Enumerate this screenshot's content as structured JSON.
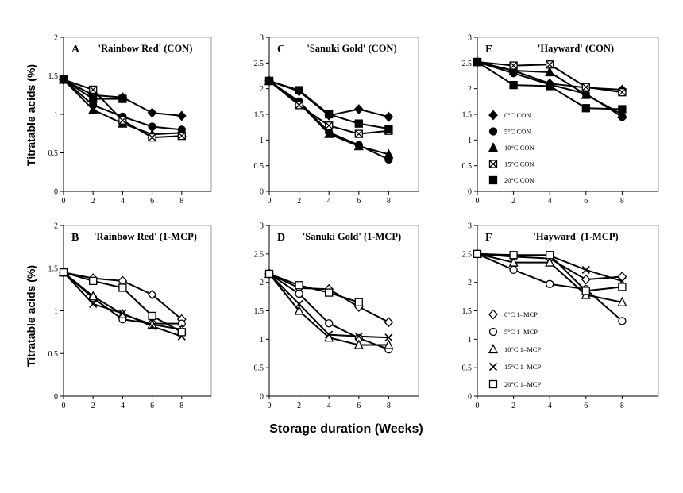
{
  "figure": {
    "ylabel_top": "Titratable  acids (%)",
    "ylabel_bottom": "Titratable  acids (%)",
    "xlabel": "Storage duration (Weeks)"
  },
  "chart_data": [
    {
      "type": "line",
      "panel": "A",
      "title": "'Rainbow Red' (CON)",
      "x": [
        0,
        2,
        4,
        6,
        8
      ],
      "xlim": [
        0,
        10
      ],
      "xticks": [
        0,
        2,
        4,
        6,
        8
      ],
      "ylim": [
        0,
        2
      ],
      "yticks": [
        "0",
        "0.5",
        "1",
        "1.5",
        "2"
      ],
      "series": [
        {
          "name": "0°C  CON",
          "marker": "diamond-filled",
          "values": [
            1.45,
            1.25,
            1.22,
            1.02,
            0.98
          ]
        },
        {
          "name": "5°C  CON",
          "marker": "circle-filled",
          "values": [
            1.45,
            1.12,
            0.97,
            0.84,
            0.8
          ]
        },
        {
          "name": "10°C  CON",
          "marker": "triangle-filled",
          "values": [
            1.45,
            1.06,
            0.88,
            0.74,
            0.76
          ]
        },
        {
          "name": "15°C  CON",
          "marker": "square-x",
          "values": [
            1.45,
            1.32,
            0.92,
            0.7,
            0.72
          ]
        },
        {
          "name": "20°C  CON",
          "marker": "square-filled",
          "values": [
            1.45,
            1.2,
            1.2,
            null,
            null
          ]
        }
      ]
    },
    {
      "type": "line",
      "panel": "C",
      "title": "'Sanuki Gold' (CON)",
      "x": [
        0,
        2,
        4,
        6,
        8
      ],
      "xlim": [
        0,
        10
      ],
      "xticks": [
        0,
        2,
        4,
        6,
        8
      ],
      "ylim": [
        0,
        3
      ],
      "yticks": [
        "0",
        "0.5",
        "1",
        "1.5",
        "2",
        "2.5",
        "3"
      ],
      "series": [
        {
          "name": "0°C  CON",
          "marker": "diamond-filled",
          "values": [
            2.15,
            1.95,
            1.48,
            1.6,
            1.45
          ]
        },
        {
          "name": "5°C  CON",
          "marker": "circle-filled",
          "values": [
            2.15,
            1.75,
            1.15,
            0.9,
            0.62
          ]
        },
        {
          "name": "10°C  CON",
          "marker": "triangle-filled",
          "values": [
            2.15,
            1.72,
            1.12,
            0.88,
            0.72
          ]
        },
        {
          "name": "15°C  CON",
          "marker": "square-x",
          "values": [
            2.15,
            1.68,
            1.28,
            1.12,
            1.18
          ]
        },
        {
          "name": "20°C  CON",
          "marker": "square-filled",
          "values": [
            2.15,
            1.97,
            1.5,
            1.32,
            1.22
          ]
        }
      ]
    },
    {
      "type": "line",
      "panel": "E",
      "title": "'Hayward' (CON)",
      "x": [
        0,
        2,
        4,
        6,
        8
      ],
      "xlim": [
        0,
        10
      ],
      "xticks": [
        0,
        2,
        4,
        6,
        8
      ],
      "ylim": [
        0,
        3
      ],
      "yticks": [
        "0",
        "0.5",
        "1",
        "1.5",
        "2",
        "2.5",
        "3"
      ],
      "legend": "inside-left",
      "series": [
        {
          "name": "0°C  CON",
          "marker": "diamond-filled",
          "values": [
            2.52,
            2.35,
            2.1,
            2.02,
            1.98
          ]
        },
        {
          "name": "5°C  CON",
          "marker": "circle-filled",
          "values": [
            2.52,
            2.3,
            2.08,
            1.9,
            1.45
          ]
        },
        {
          "name": "10°C  CON",
          "marker": "triangle-filled",
          "values": [
            2.52,
            2.35,
            2.32,
            1.88,
            1.5
          ]
        },
        {
          "name": "15°C  CON",
          "marker": "square-x",
          "values": [
            2.52,
            2.45,
            2.47,
            2.03,
            1.93
          ]
        },
        {
          "name": "20°C  CON",
          "marker": "square-filled",
          "values": [
            2.52,
            2.07,
            2.05,
            1.62,
            1.6
          ]
        }
      ]
    },
    {
      "type": "line",
      "panel": "B",
      "title": "'Rainbow Red' (1-MCP)",
      "x": [
        0,
        2,
        4,
        6,
        8
      ],
      "xlim": [
        0,
        10
      ],
      "xticks": [
        0,
        2,
        4,
        6,
        8
      ],
      "ylim": [
        0,
        2
      ],
      "yticks": [
        "0",
        "0.5",
        "1",
        "1.5",
        "2"
      ],
      "series": [
        {
          "name": "0°C  1–MCP",
          "marker": "diamond-open",
          "values": [
            1.45,
            1.38,
            1.35,
            1.19,
            0.9
          ]
        },
        {
          "name": "5°C  1–MCP",
          "marker": "circle-open",
          "values": [
            1.45,
            1.15,
            0.9,
            0.85,
            0.85
          ]
        },
        {
          "name": "10°C  1–MCP",
          "marker": "triangle-open",
          "values": [
            1.45,
            1.17,
            0.96,
            0.84,
            0.78
          ]
        },
        {
          "name": "15°C  1–MCP",
          "marker": "x",
          "values": [
            1.45,
            1.08,
            0.97,
            0.82,
            0.7
          ]
        },
        {
          "name": "20°C  1–MCP",
          "marker": "square-open",
          "values": [
            1.45,
            1.35,
            1.27,
            0.94,
            0.75
          ]
        }
      ]
    },
    {
      "type": "line",
      "panel": "D",
      "title": "'Sanuki  Gold' (1-MCP)",
      "x": [
        0,
        2,
        4,
        6,
        8
      ],
      "xlim": [
        0,
        10
      ],
      "xticks": [
        0,
        2,
        4,
        6,
        8
      ],
      "ylim": [
        0,
        3
      ],
      "yticks": [
        "0",
        "0.5",
        "1",
        "1.5",
        "2",
        "2.5",
        "3"
      ],
      "series": [
        {
          "name": "0°C  1–MCP",
          "marker": "diamond-open",
          "values": [
            2.15,
            1.9,
            1.88,
            1.57,
            1.3
          ]
        },
        {
          "name": "5°C  1–MCP",
          "marker": "circle-open",
          "values": [
            2.15,
            1.8,
            1.28,
            1.02,
            0.82
          ]
        },
        {
          "name": "10°C  1–MCP",
          "marker": "triangle-open",
          "values": [
            2.15,
            1.5,
            1.03,
            0.9,
            0.9
          ]
        },
        {
          "name": "15°C  1–MCP",
          "marker": "x",
          "values": [
            2.15,
            1.62,
            1.08,
            1.05,
            1.03
          ]
        },
        {
          "name": "20°C  1–MCP",
          "marker": "square-open",
          "values": [
            2.15,
            1.95,
            1.82,
            1.65,
            null
          ]
        }
      ]
    },
    {
      "type": "line",
      "panel": "F",
      "title": "'Hayward' (1-MCP)",
      "x": [
        0,
        2,
        4,
        6,
        8
      ],
      "xlim": [
        0,
        10
      ],
      "xticks": [
        0,
        2,
        4,
        6,
        8
      ],
      "ylim": [
        0,
        3
      ],
      "yticks": [
        "0",
        "0.5",
        "1",
        "1.5",
        "2",
        "2.5",
        "3"
      ],
      "legend": "inside-left",
      "series": [
        {
          "name": "0°C  1–MCP",
          "marker": "diamond-open",
          "values": [
            2.5,
            2.45,
            2.42,
            2.05,
            2.1
          ]
        },
        {
          "name": "5°C  1–MCP",
          "marker": "circle-open",
          "values": [
            2.5,
            2.22,
            1.97,
            1.88,
            1.32
          ]
        },
        {
          "name": "10°C  1–MCP",
          "marker": "triangle-open",
          "values": [
            2.5,
            2.35,
            2.35,
            1.78,
            1.65
          ]
        },
        {
          "name": "15°C  1–MCP",
          "marker": "x",
          "values": [
            2.5,
            2.47,
            2.47,
            2.22,
            2.02
          ]
        },
        {
          "name": "20°C  1–MCP",
          "marker": "square-open",
          "values": [
            2.5,
            2.48,
            2.48,
            1.85,
            1.92
          ]
        }
      ]
    }
  ]
}
